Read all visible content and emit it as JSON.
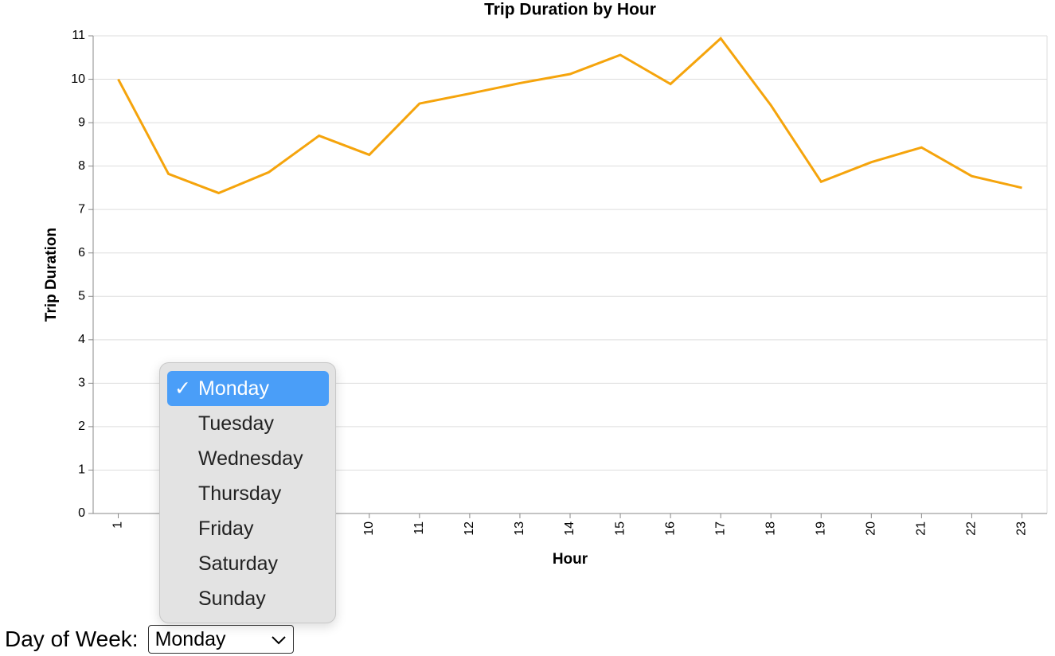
{
  "chart_data": {
    "type": "line",
    "title": "Trip Duration by Hour",
    "x_label": "Hour",
    "y_label": "Trip Duration",
    "categories": [
      "1",
      null,
      null,
      null,
      null,
      "10",
      "11",
      "12",
      "13",
      "14",
      "15",
      "16",
      "17",
      "18",
      "19",
      "20",
      "21",
      "22",
      "23"
    ],
    "series": [
      {
        "name": "Trip Duration",
        "color": "#f5a40c",
        "values": [
          10.0,
          7.82,
          7.38,
          7.86,
          8.7,
          8.26,
          9.44,
          9.67,
          9.91,
          10.12,
          10.56,
          9.89,
          10.94,
          9.4,
          7.64,
          8.09,
          8.43,
          7.77,
          7.5
        ]
      }
    ],
    "ylim": [
      0,
      11
    ],
    "yticks": [
      0,
      1,
      2,
      3,
      4,
      5,
      6,
      7,
      8,
      9,
      10,
      11
    ],
    "grid": true
  },
  "controls": {
    "label": "Day of Week:",
    "selected": "Monday",
    "check": "✓",
    "options": [
      "Monday",
      "Tuesday",
      "Wednesday",
      "Thursday",
      "Friday",
      "Saturday",
      "Sunday"
    ]
  }
}
